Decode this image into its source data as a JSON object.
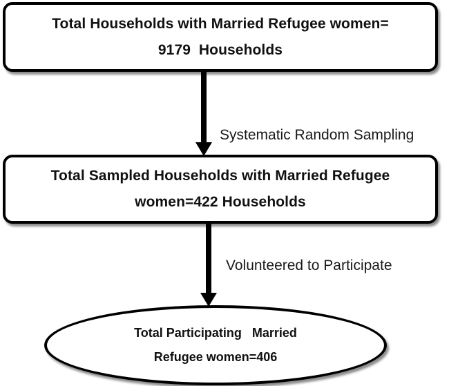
{
  "diagram": {
    "top_box": {
      "line1": "Total Households with Married Refugee women=",
      "line2": "9179  Households"
    },
    "arrow1_label": "Systematic Random Sampling",
    "middle_box": {
      "line1": "Total Sampled Households with Married Refugee",
      "line2": "women=422 Households"
    },
    "arrow2_label": "Volunteered to Participate",
    "bottom_ellipse": {
      "line1": "Total Participating   Married",
      "line2": "Refugee women=406"
    }
  }
}
